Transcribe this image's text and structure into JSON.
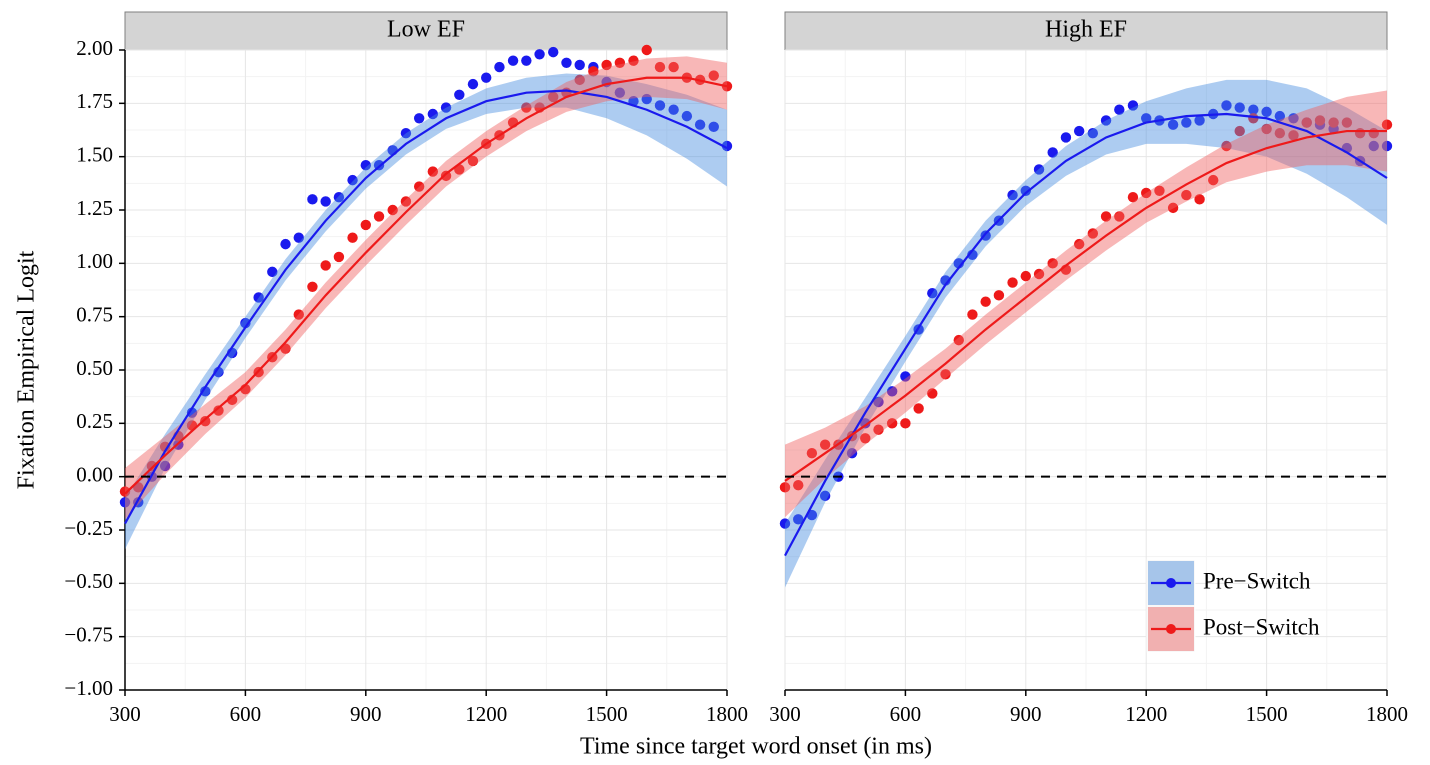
{
  "chart_data": {
    "type": "scatter",
    "panels": [
      "Low EF",
      "High EF"
    ],
    "xlabel": "Time since target word onset (in ms)",
    "ylabel": "Fixation Empirical Logit",
    "xlim": [
      300,
      1800
    ],
    "xticks": [
      300,
      600,
      900,
      1200,
      1500,
      1800
    ],
    "ylim": [
      -1,
      2
    ],
    "yticks": [
      {
        "value": -1,
        "label": "−1.00"
      },
      {
        "value": -0.75,
        "label": "−0.75"
      },
      {
        "value": -0.5,
        "label": "−0.50"
      },
      {
        "value": -0.25,
        "label": "−0.25"
      },
      {
        "value": 0,
        "label": "0.00"
      },
      {
        "value": 0.25,
        "label": "0.25"
      },
      {
        "value": 0.5,
        "label": "0.50"
      },
      {
        "value": 0.75,
        "label": "0.75"
      },
      {
        "value": 1,
        "label": "1.00"
      },
      {
        "value": 1.25,
        "label": "1.25"
      },
      {
        "value": 1.5,
        "label": "1.50"
      },
      {
        "value": 1.75,
        "label": "1.75"
      },
      {
        "value": 2,
        "label": "2.00"
      }
    ],
    "grid": true,
    "reference_line": 0,
    "legend": "bottom-right",
    "x": [
      300,
      333,
      367,
      400,
      433,
      467,
      500,
      533,
      567,
      600,
      633,
      667,
      700,
      733,
      767,
      800,
      833,
      867,
      900,
      933,
      967,
      1000,
      1033,
      1067,
      1100,
      1133,
      1167,
      1200,
      1233,
      1267,
      1300,
      1333,
      1367,
      1400,
      1433,
      1467,
      1500,
      1533,
      1567,
      1600,
      1633,
      1667,
      1700,
      1733,
      1767,
      1800
    ],
    "fit_x": [
      300,
      400,
      500,
      600,
      700,
      800,
      900,
      1000,
      1100,
      1200,
      1300,
      1400,
      1500,
      1600,
      1700,
      1800
    ],
    "series": [
      {
        "name": "Pre−Switch",
        "color": "#1a1aee",
        "fill": "#4a8fe0",
        "values": [
          [
            -0.12,
            -0.12,
            0.0,
            0.05,
            0.15,
            0.3,
            0.4,
            0.49,
            0.58,
            0.72,
            0.84,
            0.96,
            1.09,
            1.12,
            1.3,
            1.29,
            1.31,
            1.39,
            1.46,
            1.46,
            1.53,
            1.61,
            1.68,
            1.7,
            1.73,
            1.79,
            1.84,
            1.87,
            1.92,
            1.95,
            1.95,
            1.98,
            1.99,
            1.94,
            1.93,
            1.92,
            1.85,
            1.8,
            1.76,
            1.77,
            1.74,
            1.72,
            1.69,
            1.65,
            1.64,
            1.55
          ],
          [
            -0.22,
            -0.2,
            -0.18,
            -0.09,
            0.0,
            0.11,
            0.25,
            0.35,
            0.4,
            0.47,
            0.69,
            0.86,
            0.92,
            1.0,
            1.04,
            1.13,
            1.2,
            1.32,
            1.34,
            1.44,
            1.52,
            1.59,
            1.62,
            1.61,
            1.67,
            1.72,
            1.74,
            1.68,
            1.67,
            1.65,
            1.66,
            1.67,
            1.7,
            1.74,
            1.73,
            1.72,
            1.71,
            1.69,
            1.68,
            1.66,
            1.65,
            1.63,
            1.54,
            1.48,
            1.55,
            1.55
          ]
        ],
        "fit": [
          [
            -0.22,
            0.12,
            0.42,
            0.7,
            0.97,
            1.2,
            1.4,
            1.56,
            1.68,
            1.76,
            1.8,
            1.81,
            1.78,
            1.72,
            1.64,
            1.54
          ],
          [
            -0.37,
            -0.02,
            0.3,
            0.6,
            0.9,
            1.14,
            1.33,
            1.48,
            1.59,
            1.66,
            1.69,
            1.7,
            1.68,
            1.62,
            1.52,
            1.4
          ]
        ],
        "fit_lower": [
          [
            -0.34,
            0.04,
            0.36,
            0.65,
            0.92,
            1.15,
            1.35,
            1.51,
            1.63,
            1.7,
            1.73,
            1.73,
            1.68,
            1.6,
            1.49,
            1.36
          ],
          [
            -0.52,
            -0.12,
            0.23,
            0.54,
            0.84,
            1.08,
            1.27,
            1.41,
            1.51,
            1.56,
            1.56,
            1.54,
            1.5,
            1.42,
            1.31,
            1.18
          ]
        ],
        "fit_upper": [
          [
            -0.1,
            0.2,
            0.48,
            0.75,
            1.02,
            1.25,
            1.45,
            1.61,
            1.73,
            1.82,
            1.87,
            1.89,
            1.88,
            1.84,
            1.79,
            1.72
          ],
          [
            -0.22,
            0.08,
            0.37,
            0.66,
            0.96,
            1.2,
            1.39,
            1.55,
            1.67,
            1.76,
            1.82,
            1.86,
            1.86,
            1.82,
            1.73,
            1.62
          ]
        ]
      },
      {
        "name": "Post−Switch",
        "color": "#ee1a1a",
        "fill": "#f06060",
        "values": [
          [
            -0.07,
            -0.05,
            0.05,
            0.14,
            0.19,
            0.24,
            0.26,
            0.31,
            0.36,
            0.41,
            0.49,
            0.56,
            0.6,
            0.76,
            0.89,
            0.99,
            1.03,
            1.12,
            1.18,
            1.22,
            1.25,
            1.29,
            1.36,
            1.43,
            1.41,
            1.44,
            1.48,
            1.56,
            1.6,
            1.66,
            1.73,
            1.73,
            1.78,
            1.8,
            1.86,
            1.9,
            1.93,
            1.94,
            1.95,
            2.0,
            1.92,
            1.92,
            1.87,
            1.86,
            1.88,
            1.83
          ],
          [
            -0.05,
            -0.04,
            0.11,
            0.15,
            0.15,
            0.19,
            0.18,
            0.22,
            0.25,
            0.25,
            0.32,
            0.39,
            0.48,
            0.64,
            0.76,
            0.82,
            0.85,
            0.91,
            0.94,
            0.95,
            1.0,
            0.97,
            1.09,
            1.14,
            1.22,
            1.22,
            1.31,
            1.33,
            1.34,
            1.26,
            1.32,
            1.3,
            1.39,
            1.55,
            1.62,
            1.68,
            1.63,
            1.61,
            1.6,
            1.66,
            1.67,
            1.66,
            1.66,
            1.61,
            1.61,
            1.65
          ]
        ],
        "fit": [
          [
            -0.08,
            0.1,
            0.27,
            0.43,
            0.63,
            0.85,
            1.05,
            1.24,
            1.42,
            1.56,
            1.68,
            1.78,
            1.84,
            1.87,
            1.87,
            1.83
          ],
          [
            -0.02,
            0.11,
            0.24,
            0.38,
            0.53,
            0.69,
            0.84,
            0.99,
            1.13,
            1.26,
            1.37,
            1.47,
            1.54,
            1.59,
            1.62,
            1.62
          ]
        ],
        "fit_lower": [
          [
            -0.2,
            0.01,
            0.2,
            0.37,
            0.57,
            0.79,
            0.99,
            1.18,
            1.36,
            1.5,
            1.62,
            1.71,
            1.76,
            1.78,
            1.77,
            1.72
          ],
          [
            -0.19,
            -0.01,
            0.15,
            0.3,
            0.46,
            0.62,
            0.77,
            0.92,
            1.06,
            1.19,
            1.29,
            1.38,
            1.43,
            1.46,
            1.46,
            1.43
          ]
        ],
        "fit_upper": [
          [
            0.04,
            0.19,
            0.34,
            0.49,
            0.69,
            0.91,
            1.11,
            1.3,
            1.48,
            1.62,
            1.74,
            1.85,
            1.92,
            1.96,
            1.97,
            1.94
          ],
          [
            0.15,
            0.23,
            0.33,
            0.46,
            0.6,
            0.76,
            0.91,
            1.06,
            1.2,
            1.33,
            1.45,
            1.56,
            1.65,
            1.72,
            1.78,
            1.81
          ]
        ]
      }
    ]
  }
}
